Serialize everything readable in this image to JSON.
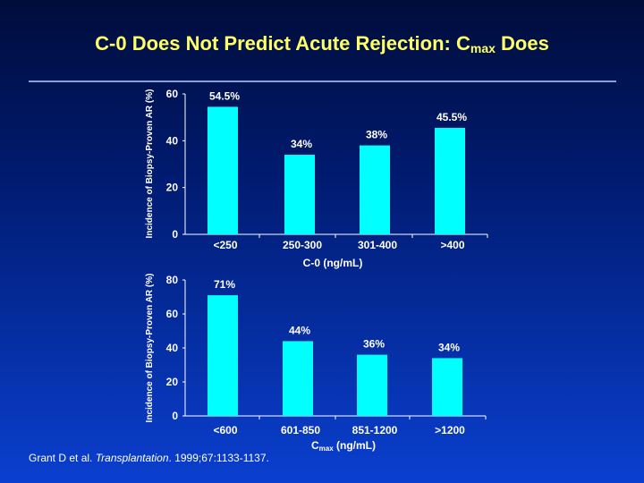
{
  "title": {
    "main": "C-0 Does Not Predict Acute Rejection: C",
    "sub": "max",
    "suffix": " Does"
  },
  "colors": {
    "bar": "#00ffff",
    "text": "#ffffff",
    "title": "#ffff66"
  },
  "chart_data": [
    {
      "type": "bar",
      "ylabel": "Incidence of Biopsy-Proven AR (%)",
      "xlabel": "C-0 (ng/mL)",
      "categories": [
        "<250",
        "250-300",
        "301-400",
        ">400"
      ],
      "values": [
        54.5,
        34,
        38,
        45.5
      ],
      "labels": [
        "54.5%",
        "34%",
        "38%",
        "45.5%"
      ],
      "ylim": [
        0,
        60
      ],
      "yticks": [
        "0",
        "20",
        "40",
        "60"
      ]
    },
    {
      "type": "bar",
      "ylabel": "Incidence of Biopsy-Proven AR (%)",
      "xlabel_main": "C",
      "xlabel_sub": "max",
      "xlabel_suffix": " (ng/mL)",
      "categories": [
        "<600",
        "601-850",
        "851-1200",
        ">1200"
      ],
      "values": [
        71,
        44,
        36,
        34
      ],
      "labels": [
        "71%",
        "44%",
        "36%",
        "34%"
      ],
      "ylim": [
        0,
        80
      ],
      "yticks": [
        "0",
        "20",
        "40",
        "60",
        "80"
      ]
    }
  ],
  "citation": {
    "author": "Grant D et al. ",
    "journal": "Transplantation",
    "details": ". 1999;67:1133-1137."
  }
}
